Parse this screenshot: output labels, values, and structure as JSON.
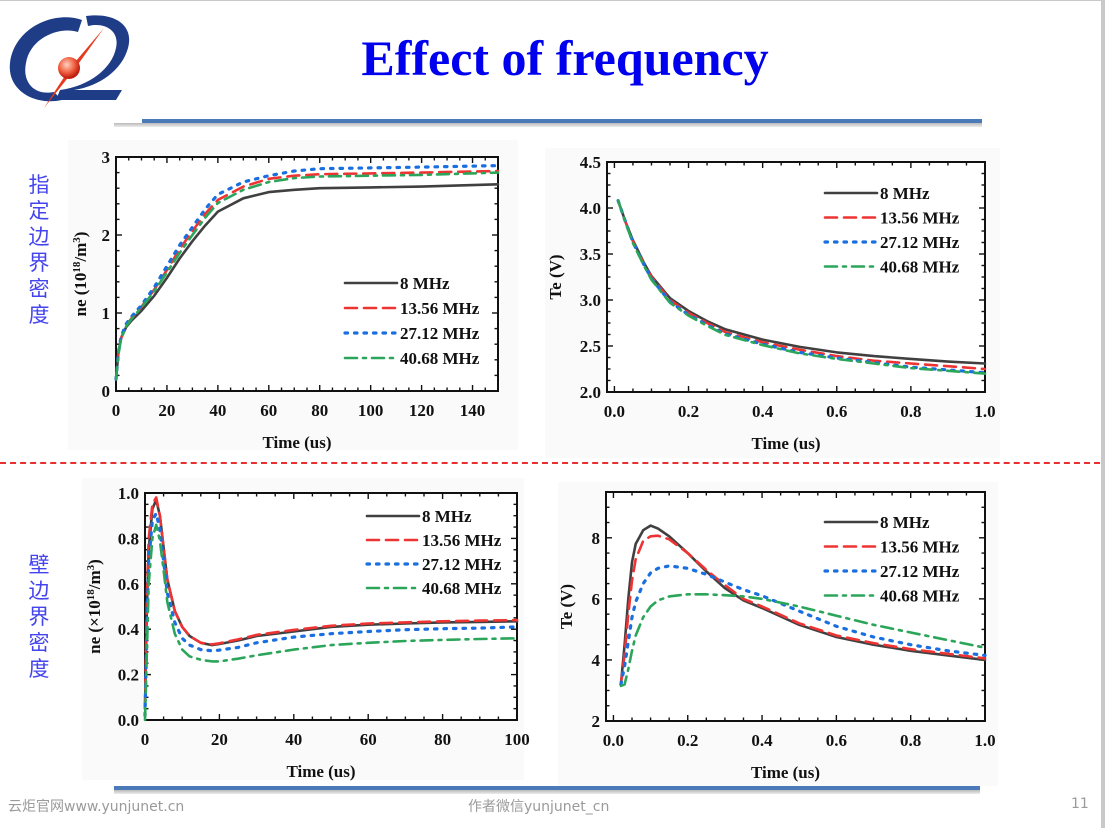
{
  "slide": {
    "title": "Effect of frequency",
    "page_number": "11",
    "side_labels": {
      "top": [
        "指",
        "定",
        "边",
        "界",
        "密",
        "度"
      ],
      "bottom": [
        "壁",
        "边",
        "界",
        "密",
        "度"
      ]
    },
    "footer": {
      "left": "云炬官网www.yunjunet.cn",
      "center": "作者微信yunjunet_cn"
    },
    "colors": {
      "title": "#0000ee",
      "rule": "#4a7ab8",
      "separator": "#e83030",
      "side_label": "#4444ee"
    },
    "logo": "institution-logo"
  },
  "series_styles": [
    {
      "name": "8 MHz",
      "color": "#404040",
      "dash": "solid"
    },
    {
      "name": "13.56 MHz",
      "color": "#ee3333",
      "dash": "dashed"
    },
    {
      "name": "27.12 MHz",
      "color": "#1a6fe0",
      "dash": "dotted"
    },
    {
      "name": "40.68 MHz",
      "color": "#2aa55a",
      "dash": "dash-dot"
    }
  ],
  "chart_data": [
    {
      "id": "top-left",
      "type": "line",
      "title": "",
      "xlabel": "Time  (us)",
      "ylabel": "ne  (10^18/m^3)",
      "ylabel_parts": {
        "base": "ne  (10",
        "sup": "18",
        "tail": "/m",
        "sup2": "3",
        "end": ")"
      },
      "xlim": [
        0,
        150
      ],
      "ylim": [
        0,
        3
      ],
      "xticks": [
        0,
        20,
        40,
        60,
        80,
        100,
        120,
        140
      ],
      "xtick_labels": [
        "0",
        "20",
        "40",
        "60",
        "80",
        "100",
        "120",
        "140"
      ],
      "yticks": [
        0,
        1,
        2,
        3
      ],
      "ytick_labels": [
        "0",
        "1",
        "2",
        "3"
      ],
      "legend_position": "lower-right",
      "grid": false,
      "series": [
        {
          "name": "8 MHz",
          "x": [
            0,
            1,
            2,
            4,
            6,
            10,
            15,
            20,
            25,
            30,
            35,
            40,
            50,
            60,
            70,
            80,
            100,
            120,
            150
          ],
          "y": [
            0.15,
            0.5,
            0.68,
            0.82,
            0.9,
            1.03,
            1.22,
            1.45,
            1.7,
            1.92,
            2.12,
            2.3,
            2.47,
            2.55,
            2.58,
            2.6,
            2.61,
            2.62,
            2.65
          ]
        },
        {
          "name": "13.56 MHz",
          "x": [
            0,
            1,
            2,
            4,
            6,
            10,
            15,
            20,
            25,
            30,
            35,
            40,
            50,
            60,
            70,
            80,
            100,
            120,
            150
          ],
          "y": [
            0.15,
            0.5,
            0.68,
            0.84,
            0.93,
            1.08,
            1.3,
            1.55,
            1.82,
            2.05,
            2.27,
            2.45,
            2.62,
            2.72,
            2.76,
            2.78,
            2.79,
            2.8,
            2.82
          ]
        },
        {
          "name": "27.12 MHz",
          "x": [
            0,
            1,
            2,
            4,
            6,
            10,
            15,
            20,
            25,
            30,
            35,
            40,
            50,
            60,
            70,
            80,
            100,
            120,
            150
          ],
          "y": [
            0.15,
            0.5,
            0.7,
            0.86,
            0.95,
            1.1,
            1.33,
            1.6,
            1.87,
            2.1,
            2.33,
            2.52,
            2.68,
            2.76,
            2.82,
            2.85,
            2.86,
            2.87,
            2.89
          ]
        },
        {
          "name": "40.68 MHz",
          "x": [
            0,
            1,
            2,
            4,
            6,
            10,
            15,
            20,
            25,
            30,
            35,
            40,
            50,
            60,
            70,
            80,
            100,
            120,
            150
          ],
          "y": [
            0.15,
            0.48,
            0.67,
            0.83,
            0.92,
            1.07,
            1.28,
            1.52,
            1.77,
            2.0,
            2.22,
            2.41,
            2.58,
            2.68,
            2.73,
            2.75,
            2.76,
            2.77,
            2.8
          ]
        }
      ]
    },
    {
      "id": "top-right",
      "type": "line",
      "title": "",
      "xlabel": "Time  (us)",
      "ylabel": "Te  (V)",
      "xlim": [
        -0.02,
        1.0
      ],
      "ylim": [
        2.0,
        4.5
      ],
      "xticks": [
        0.0,
        0.2,
        0.4,
        0.6,
        0.8,
        1.0
      ],
      "xtick_labels": [
        "0.0",
        "0.2",
        "0.4",
        "0.6",
        "0.8",
        "1.0"
      ],
      "yticks": [
        2.0,
        2.5,
        3.0,
        3.5,
        4.0,
        4.5
      ],
      "ytick_labels": [
        "2.0",
        "2.5",
        "3.0",
        "3.5",
        "4.0",
        "4.5"
      ],
      "legend_position": "top-right",
      "grid": false,
      "series": [
        {
          "name": "8 MHz",
          "x": [
            0.01,
            0.03,
            0.05,
            0.08,
            0.1,
            0.15,
            0.2,
            0.25,
            0.3,
            0.4,
            0.5,
            0.6,
            0.7,
            0.8,
            0.9,
            1.0
          ],
          "y": [
            4.08,
            3.85,
            3.65,
            3.4,
            3.26,
            3.02,
            2.88,
            2.77,
            2.68,
            2.57,
            2.49,
            2.43,
            2.39,
            2.36,
            2.33,
            2.31
          ]
        },
        {
          "name": "13.56 MHz",
          "x": [
            0.01,
            0.03,
            0.05,
            0.08,
            0.1,
            0.15,
            0.2,
            0.25,
            0.3,
            0.4,
            0.5,
            0.6,
            0.7,
            0.8,
            0.9,
            1.0
          ],
          "y": [
            4.08,
            3.85,
            3.64,
            3.39,
            3.25,
            3.0,
            2.86,
            2.75,
            2.65,
            2.54,
            2.46,
            2.39,
            2.34,
            2.31,
            2.28,
            2.25
          ]
        },
        {
          "name": "27.12 MHz",
          "x": [
            0.01,
            0.03,
            0.05,
            0.08,
            0.1,
            0.15,
            0.2,
            0.25,
            0.3,
            0.4,
            0.5,
            0.6,
            0.7,
            0.8,
            0.9,
            1.0
          ],
          "y": [
            4.08,
            3.85,
            3.63,
            3.38,
            3.23,
            2.98,
            2.84,
            2.73,
            2.63,
            2.52,
            2.43,
            2.37,
            2.32,
            2.27,
            2.24,
            2.21
          ]
        },
        {
          "name": "40.68 MHz",
          "x": [
            0.01,
            0.03,
            0.05,
            0.08,
            0.1,
            0.15,
            0.2,
            0.25,
            0.3,
            0.4,
            0.5,
            0.6,
            0.7,
            0.8,
            0.9,
            1.0
          ],
          "y": [
            4.08,
            3.84,
            3.62,
            3.37,
            3.22,
            2.97,
            2.83,
            2.72,
            2.62,
            2.51,
            2.42,
            2.36,
            2.31,
            2.26,
            2.23,
            2.2
          ]
        }
      ]
    },
    {
      "id": "bottom-left",
      "type": "line",
      "title": "",
      "xlabel": "Time  (us)",
      "ylabel": "ne  (×10^18/m^3)",
      "ylabel_parts": {
        "base": "ne  (×10",
        "sup": "18",
        "tail": "/m",
        "sup2": "3",
        "end": ")"
      },
      "xlim": [
        0,
        100
      ],
      "ylim": [
        0.0,
        1.0
      ],
      "xticks": [
        0,
        20,
        40,
        60,
        80,
        100
      ],
      "xtick_labels": [
        "0",
        "20",
        "40",
        "60",
        "80",
        "100"
      ],
      "yticks": [
        0.0,
        0.2,
        0.4,
        0.6,
        0.8,
        1.0
      ],
      "ytick_labels": [
        "0.0",
        "0.2",
        "0.4",
        "0.6",
        "0.8",
        "1.0"
      ],
      "legend_position": "top-right",
      "grid": false,
      "series": [
        {
          "name": "8 MHz",
          "x": [
            0,
            0.5,
            1,
            2,
            3,
            4,
            5,
            6,
            8,
            10,
            12,
            15,
            18,
            20,
            25,
            30,
            40,
            50,
            60,
            70,
            80,
            90,
            100
          ],
          "y": [
            0.05,
            0.5,
            0.75,
            0.93,
            0.97,
            0.9,
            0.76,
            0.62,
            0.48,
            0.41,
            0.37,
            0.34,
            0.33,
            0.335,
            0.35,
            0.37,
            0.39,
            0.41,
            0.42,
            0.425,
            0.43,
            0.432,
            0.435
          ]
        },
        {
          "name": "13.56 MHz",
          "x": [
            0,
            0.5,
            1,
            2,
            3,
            4,
            5,
            6,
            8,
            10,
            12,
            15,
            18,
            20,
            25,
            30,
            40,
            50,
            60,
            70,
            80,
            90,
            100
          ],
          "y": [
            0.05,
            0.55,
            0.8,
            0.95,
            0.98,
            0.9,
            0.76,
            0.62,
            0.48,
            0.41,
            0.37,
            0.34,
            0.333,
            0.338,
            0.355,
            0.375,
            0.397,
            0.415,
            0.425,
            0.43,
            0.435,
            0.438,
            0.44
          ]
        },
        {
          "name": "27.12 MHz",
          "x": [
            0,
            0.5,
            1,
            2,
            3,
            4,
            5,
            6,
            8,
            10,
            12,
            15,
            18,
            20,
            25,
            30,
            40,
            50,
            60,
            70,
            80,
            90,
            100
          ],
          "y": [
            0.02,
            0.4,
            0.7,
            0.88,
            0.91,
            0.84,
            0.7,
            0.56,
            0.43,
            0.36,
            0.33,
            0.31,
            0.305,
            0.308,
            0.32,
            0.34,
            0.365,
            0.38,
            0.39,
            0.398,
            0.402,
            0.405,
            0.41
          ]
        },
        {
          "name": "40.68 MHz",
          "x": [
            0,
            0.5,
            1,
            2,
            3,
            4,
            5,
            6,
            8,
            10,
            12,
            15,
            18,
            20,
            25,
            30,
            40,
            50,
            60,
            70,
            80,
            90,
            100
          ],
          "y": [
            0.0,
            0.3,
            0.6,
            0.8,
            0.86,
            0.79,
            0.66,
            0.52,
            0.38,
            0.31,
            0.28,
            0.265,
            0.258,
            0.258,
            0.27,
            0.285,
            0.31,
            0.33,
            0.34,
            0.348,
            0.353,
            0.357,
            0.36
          ]
        }
      ]
    },
    {
      "id": "bottom-right",
      "type": "line",
      "title": "",
      "xlabel": "Time  (us)",
      "ylabel": "Te  (V)",
      "xlim": [
        -0.02,
        1.0
      ],
      "ylim": [
        2,
        9.5
      ],
      "xticks": [
        0.0,
        0.2,
        0.4,
        0.6,
        0.8,
        1.0
      ],
      "xtick_labels": [
        "0.0",
        "0.2",
        "0.4",
        "0.6",
        "0.8",
        "1.0"
      ],
      "yticks": [
        2,
        4,
        6,
        8
      ],
      "ytick_labels": [
        "2",
        "4",
        "6",
        "8"
      ],
      "legend_position": "top-right",
      "grid": false,
      "series": [
        {
          "name": "8 MHz",
          "x": [
            0.02,
            0.03,
            0.04,
            0.05,
            0.06,
            0.08,
            0.1,
            0.12,
            0.15,
            0.2,
            0.25,
            0.3,
            0.35,
            0.4,
            0.5,
            0.6,
            0.7,
            0.8,
            0.9,
            1.0
          ],
          "y": [
            3.2,
            4.5,
            6.0,
            7.2,
            7.8,
            8.25,
            8.4,
            8.3,
            8.05,
            7.5,
            6.9,
            6.35,
            5.95,
            5.7,
            5.15,
            4.75,
            4.5,
            4.3,
            4.15,
            4.0
          ]
        },
        {
          "name": "13.56 MHz",
          "x": [
            0.02,
            0.03,
            0.04,
            0.05,
            0.06,
            0.08,
            0.1,
            0.12,
            0.15,
            0.2,
            0.25,
            0.3,
            0.35,
            0.4,
            0.5,
            0.6,
            0.7,
            0.8,
            0.9,
            1.0
          ],
          "y": [
            3.2,
            4.2,
            5.5,
            6.6,
            7.3,
            7.9,
            8.05,
            8.07,
            7.95,
            7.5,
            6.95,
            6.45,
            6.0,
            5.75,
            5.2,
            4.8,
            4.55,
            4.35,
            4.2,
            4.05
          ]
        },
        {
          "name": "27.12 MHz",
          "x": [
            0.02,
            0.03,
            0.04,
            0.05,
            0.06,
            0.08,
            0.1,
            0.12,
            0.15,
            0.2,
            0.25,
            0.3,
            0.35,
            0.4,
            0.5,
            0.6,
            0.7,
            0.8,
            0.9,
            1.0
          ],
          "y": [
            3.2,
            3.8,
            4.6,
            5.4,
            5.9,
            6.5,
            6.85,
            7.0,
            7.08,
            7.0,
            6.8,
            6.55,
            6.3,
            6.1,
            5.6,
            5.1,
            4.75,
            4.5,
            4.3,
            4.15
          ]
        },
        {
          "name": "40.68 MHz",
          "x": [
            0.02,
            0.03,
            0.04,
            0.05,
            0.06,
            0.08,
            0.1,
            0.12,
            0.15,
            0.2,
            0.25,
            0.3,
            0.35,
            0.4,
            0.5,
            0.6,
            0.7,
            0.8,
            0.9,
            1.0
          ],
          "y": [
            3.15,
            3.2,
            3.7,
            4.3,
            4.8,
            5.4,
            5.75,
            5.95,
            6.08,
            6.15,
            6.15,
            6.12,
            6.08,
            6.0,
            5.75,
            5.45,
            5.15,
            4.9,
            4.65,
            4.4
          ]
        }
      ]
    }
  ]
}
